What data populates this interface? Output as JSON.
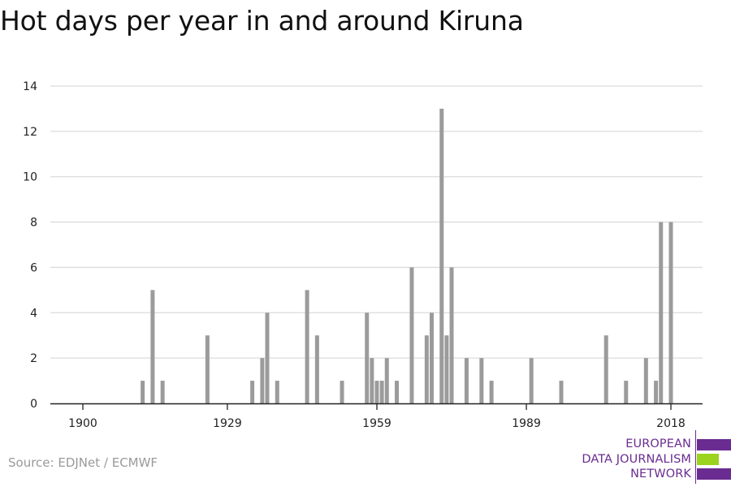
{
  "title": "Hot days per year in and around Kiruna",
  "source": "Source: EDJNet / ECMWF",
  "logo": {
    "lines": [
      "EUROPEAN",
      "DATA JOURNALISM",
      "NETWORK"
    ],
    "colors": {
      "purple": "#6a2c91",
      "green": "#9bd31e"
    }
  },
  "chart_data": {
    "type": "bar",
    "title": "Hot days per year in and around Kiruna",
    "xlabel": "",
    "ylabel": "",
    "xlim": [
      1900,
      2018
    ],
    "ylim": [
      0,
      14
    ],
    "x_ticks": [
      1900,
      1929,
      1959,
      1989,
      2018
    ],
    "y_ticks": [
      0,
      2,
      4,
      6,
      8,
      10,
      12,
      14
    ],
    "grid": true,
    "bar_color": "#9b9b9b",
    "x": [
      1912,
      1914,
      1916,
      1925,
      1934,
      1936,
      1937,
      1939,
      1945,
      1947,
      1952,
      1957,
      1958,
      1959,
      1960,
      1961,
      1963,
      1966,
      1969,
      1970,
      1972,
      1973,
      1974,
      1977,
      1980,
      1982,
      1990,
      1996,
      2005,
      2009,
      2013,
      2015,
      2016,
      2018
    ],
    "values": [
      1,
      5,
      1,
      3,
      1,
      2,
      4,
      1,
      5,
      3,
      1,
      4,
      2,
      1,
      1,
      2,
      1,
      6,
      3,
      4,
      13,
      3,
      6,
      2,
      2,
      1,
      2,
      1,
      3,
      1,
      2,
      1,
      8,
      8
    ]
  }
}
